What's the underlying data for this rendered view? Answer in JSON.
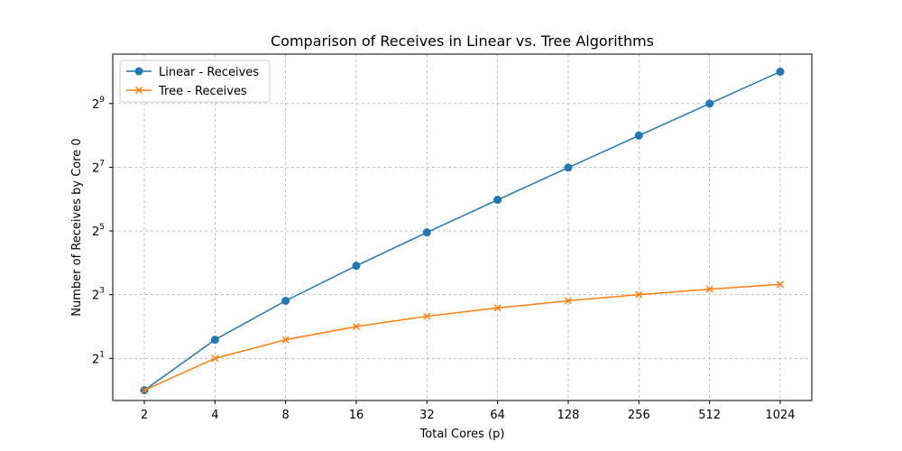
{
  "chart_data": {
    "type": "line",
    "title": "Comparison of Receives in Linear vs. Tree Algorithms",
    "xlabel": "Total Cores (p)",
    "ylabel": "Number of Receives by Core 0",
    "x_scale": "log2",
    "y_scale": "log2",
    "categories": [
      "2",
      "4",
      "8",
      "16",
      "32",
      "64",
      "128",
      "256",
      "512",
      "1024"
    ],
    "x": [
      2,
      4,
      8,
      16,
      32,
      64,
      128,
      256,
      512,
      1024
    ],
    "y_ticks": [
      {
        "base": "2",
        "exp": "1",
        "value": 2
      },
      {
        "base": "2",
        "exp": "3",
        "value": 8
      },
      {
        "base": "2",
        "exp": "5",
        "value": 32
      },
      {
        "base": "2",
        "exp": "7",
        "value": 128
      },
      {
        "base": "2",
        "exp": "9",
        "value": 512
      }
    ],
    "ylim": [
      0.8,
      1500
    ],
    "grid": true,
    "legend_position": "top-left",
    "series": [
      {
        "name": "Linear - Receives",
        "color": "#1f77b4",
        "marker": "circle",
        "values": [
          1,
          3,
          7,
          15,
          31,
          63,
          127,
          255,
          511,
          1023
        ]
      },
      {
        "name": "Tree - Receives",
        "color": "#ff7f0e",
        "marker": "x",
        "values": [
          1,
          2,
          3,
          4,
          5,
          6,
          7,
          8,
          9,
          10
        ]
      }
    ]
  }
}
